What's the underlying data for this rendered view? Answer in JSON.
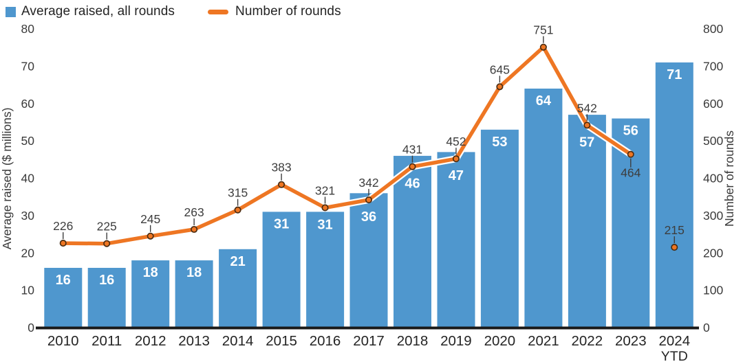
{
  "legend": {
    "items": [
      {
        "label": "Average raised, all rounds",
        "swatch": "square",
        "color": "#4f97ce"
      },
      {
        "label": "Number of rounds",
        "swatch": "dash",
        "color": "#ee7623"
      }
    ]
  },
  "chart_data": {
    "type": "bar+line",
    "categories": [
      "2010",
      "2011",
      "2012",
      "2013",
      "2014",
      "2015",
      "2016",
      "2017",
      "2018",
      "2019",
      "2020",
      "2021",
      "2022",
      "2023",
      "2024 YTD"
    ],
    "series": [
      {
        "name": "Average raised, all rounds",
        "type": "bar",
        "axis": "left",
        "color": "#4f97ce",
        "values": [
          16,
          16,
          18,
          18,
          21,
          31,
          31,
          36,
          46,
          47,
          53,
          64,
          57,
          56,
          71
        ]
      },
      {
        "name": "Number of rounds",
        "type": "line",
        "axis": "right",
        "color": "#ee7623",
        "values": [
          226,
          225,
          245,
          263,
          315,
          383,
          321,
          342,
          431,
          452,
          645,
          751,
          542,
          464,
          215
        ],
        "line_end_index": 13,
        "label_below_indices": [
          13
        ]
      }
    ],
    "left_axis": {
      "label": "Average raised ($ millions)",
      "min": 0,
      "max": 80,
      "tick_step": 10
    },
    "right_axis": {
      "label": "Number of rounds",
      "min": 0,
      "max": 800,
      "tick_step": 100
    },
    "grid": false,
    "legend_position": "top-left",
    "styles": {
      "marker_stroke": "#4a2c12",
      "label_color": "#3d3d3d",
      "bar_label_color": "#ffffff",
      "axis_line_color": "#1a1a1a",
      "tick_color": "#3a3a3a",
      "xlabel_color": "#242424"
    }
  }
}
